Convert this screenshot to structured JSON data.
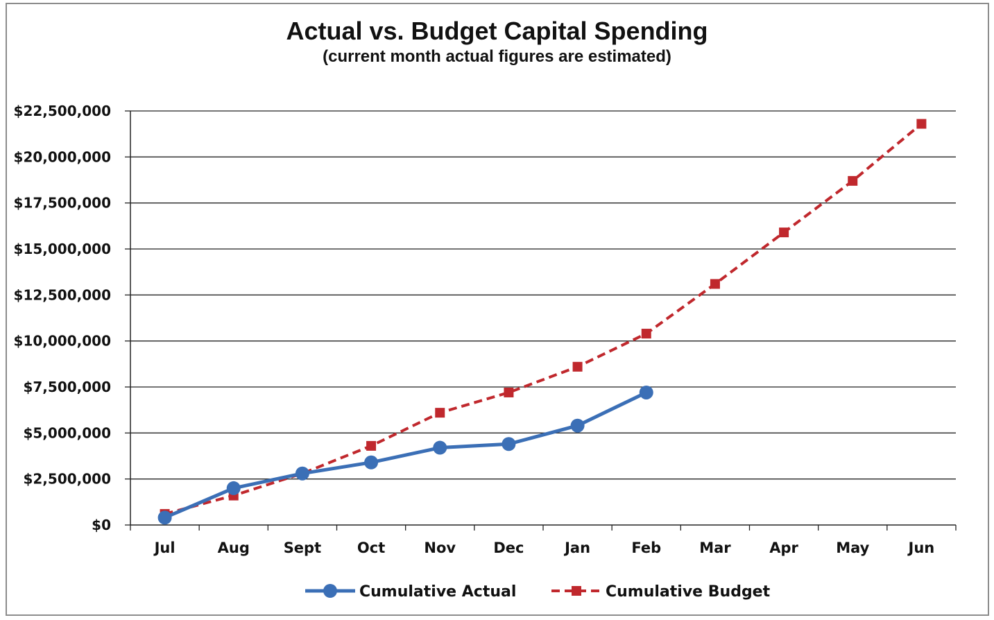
{
  "chart_data": {
    "type": "line",
    "title": "Actual vs. Budget Capital Spending",
    "subtitle": "(current month actual figures are estimated)",
    "xlabel": "",
    "ylabel": "",
    "categories": [
      "Jul",
      "Aug",
      "Sept",
      "Oct",
      "Nov",
      "Dec",
      "Jan",
      "Feb",
      "Mar",
      "Apr",
      "May",
      "Jun"
    ],
    "ylim": [
      0,
      22500000
    ],
    "yticks": [
      0,
      2500000,
      5000000,
      7500000,
      10000000,
      12500000,
      15000000,
      17500000,
      20000000,
      22500000
    ],
    "ytick_labels": [
      "$0",
      "$2,500,000",
      "$5,000,000",
      "$7,500,000",
      "$10,000,000",
      "$12,500,000",
      "$15,000,000",
      "$17,500,000",
      "$20,000,000",
      "$22,500,000"
    ],
    "grid": true,
    "legend_position": "bottom",
    "series": [
      {
        "name": "Cumulative Actual",
        "color": "#3b6fb6",
        "line_style": "solid",
        "marker": "circle",
        "values": [
          400000,
          2000000,
          2800000,
          3400000,
          4200000,
          4400000,
          5400000,
          7200000,
          null,
          null,
          null,
          null
        ]
      },
      {
        "name": "Cumulative Budget",
        "color": "#c0282d",
        "line_style": "dashed",
        "marker": "square",
        "values": [
          600000,
          1600000,
          2800000,
          4300000,
          6100000,
          7200000,
          8600000,
          10400000,
          13100000,
          15900000,
          18700000,
          21800000
        ]
      }
    ]
  }
}
